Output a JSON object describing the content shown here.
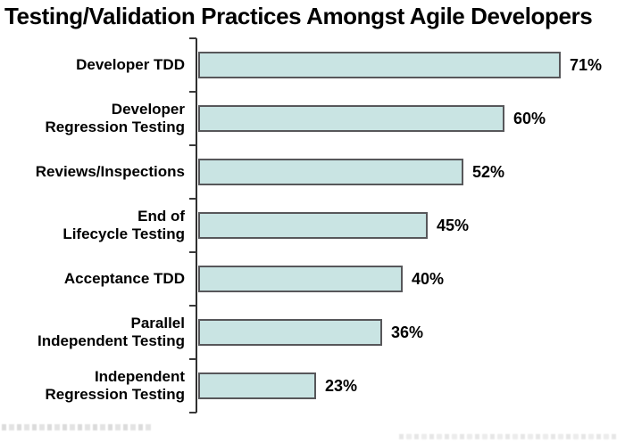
{
  "title": "Testing/Validation Practices Amongst Agile Developers",
  "chart_data": {
    "type": "bar",
    "orientation": "horizontal",
    "title": "Testing/Validation Practices Amongst Agile Developers",
    "categories": [
      "Developer TDD",
      "Developer\nRegression Testing",
      "Reviews/Inspections",
      "End of\nLifecycle Testing",
      "Acceptance TDD",
      "Parallel\nIndependent Testing",
      "Independent\nRegression Testing"
    ],
    "values": [
      71,
      60,
      52,
      45,
      40,
      36,
      23
    ],
    "value_labels": [
      "71%",
      "60%",
      "52%",
      "45%",
      "40%",
      "36%",
      "23%"
    ],
    "xlabel": "",
    "ylabel": "",
    "xlim": [
      0,
      80
    ],
    "grid": false,
    "legend": false,
    "bar_fill_color": "#c9e4e3",
    "bar_border_color": "#57575a",
    "axis_color": "#2f2f2f",
    "text_color": "#000000",
    "background_color": "#ffffff"
  }
}
